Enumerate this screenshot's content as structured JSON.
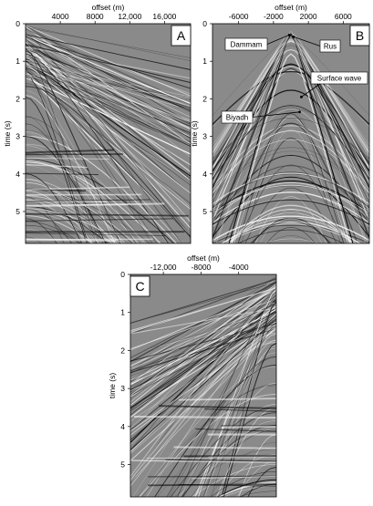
{
  "chart_data": [
    {
      "type": "heatmap",
      "panel_label": "A",
      "xlabel": "offset (m)",
      "ylabel": "time (s)",
      "x_ticks": [
        4000,
        8000,
        12000,
        16000
      ],
      "x_tick_labels": [
        "4000",
        "8000",
        "12,000",
        "16,000"
      ],
      "xlim": [
        0,
        19000
      ],
      "y_ticks": [
        0,
        1,
        2,
        3,
        4,
        5
      ],
      "y_tick_labels": [
        "0",
        "1",
        "2",
        "3",
        "4",
        "5"
      ],
      "ylim": [
        0,
        5.85
      ],
      "x_axis_position": "top",
      "annotations": []
    },
    {
      "type": "heatmap",
      "panel_label": "B",
      "xlabel": "offset (m)",
      "ylabel": "time (s)",
      "x_ticks": [
        -6000,
        -2000,
        2000,
        6000
      ],
      "x_tick_labels": [
        "-6000",
        "-2000",
        "2000",
        "6000"
      ],
      "xlim": [
        -9000,
        9000
      ],
      "y_ticks": [
        0,
        1,
        2,
        3,
        4,
        5
      ],
      "y_tick_labels": [
        "0",
        "1",
        "2",
        "3",
        "4",
        "5"
      ],
      "ylim": [
        0,
        5.85
      ],
      "x_axis_position": "top",
      "annotations": [
        {
          "text": "Dammam",
          "x": -2200,
          "y": 0.42
        },
        {
          "text": "Rus",
          "x": 1300,
          "y": 0.55
        },
        {
          "text": "Surface wave",
          "x": 2800,
          "y": 1.45
        },
        {
          "text": "Biyadh",
          "x": -3200,
          "y": 2.6
        }
      ]
    },
    {
      "type": "heatmap",
      "panel_label": "C",
      "xlabel": "offset (m)",
      "ylabel": "time (s)",
      "x_ticks": [
        -12000,
        -8000,
        -4000
      ],
      "x_tick_labels": [
        "-12,000",
        "-8000",
        "-4000"
      ],
      "xlim": [
        -15500,
        0
      ],
      "y_ticks": [
        0,
        1,
        2,
        3,
        4,
        5
      ],
      "y_tick_labels": [
        "0",
        "1",
        "2",
        "3",
        "4",
        "5"
      ],
      "ylim": [
        0,
        5.85
      ],
      "x_axis_position": "top",
      "annotations": []
    }
  ]
}
